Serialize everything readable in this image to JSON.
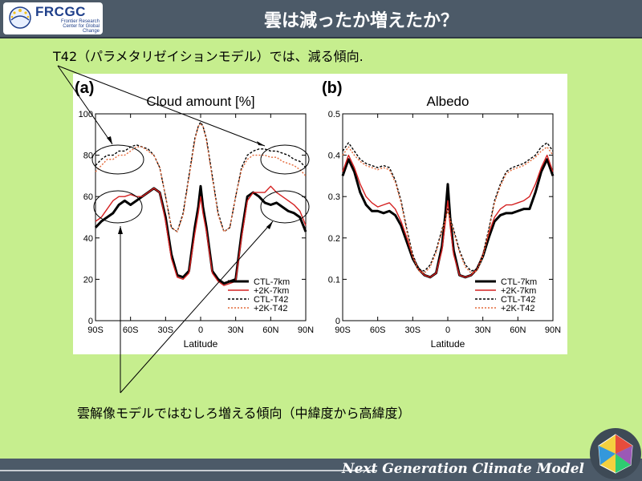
{
  "header": {
    "logo_text": "FRCGC",
    "logo_subtitle": "Frontier Research Center for Global Change",
    "title": "雲は減ったか増えたか？"
  },
  "notes": {
    "top": "T42（パラメタリゼイションモデル）では、減る傾向.",
    "bottom": "雲解像モデルではむしろ増える傾向（中緯度から高緯度）"
  },
  "footer": {
    "text": "Next Generation Climate Model"
  },
  "colors": {
    "background": "#c6ee8e",
    "bar": "#4c5a68",
    "ctl7": "#000000",
    "k7": "#d42020",
    "ctlT42": "#000000",
    "kT42": "#e46a3a"
  },
  "chart_data": [
    {
      "type": "line",
      "panel_label": "(a)",
      "title": "Cloud amount [%]",
      "xlabel": "Latitude",
      "ylabel": "",
      "xlim": [
        -90,
        90
      ],
      "ylim": [
        0,
        100
      ],
      "xticks": [
        -90,
        -60,
        -30,
        0,
        30,
        60,
        90
      ],
      "xticklabels": [
        "90S",
        "60S",
        "30S",
        "0",
        "30N",
        "60N",
        "90N"
      ],
      "yticks": [
        0,
        20,
        40,
        60,
        80,
        100
      ],
      "yticklabels": [
        "0",
        "20",
        "40",
        "60",
        "80",
        "100"
      ],
      "legend_position": "bottom-right",
      "x": [
        -90,
        -85,
        -80,
        -75,
        -70,
        -65,
        -60,
        -55,
        -50,
        -45,
        -40,
        -35,
        -30,
        -25,
        -20,
        -15,
        -10,
        -5,
        -2,
        0,
        2,
        5,
        10,
        15,
        20,
        25,
        30,
        35,
        40,
        45,
        50,
        55,
        60,
        65,
        70,
        75,
        80,
        85,
        90
      ],
      "series": [
        {
          "name": "CTL-7km",
          "style": "solid-thick",
          "color": "#000000",
          "values": [
            45,
            48,
            50,
            52,
            56,
            58,
            56,
            58,
            60,
            62,
            64,
            62,
            50,
            32,
            22,
            21,
            24,
            45,
            55,
            65,
            55,
            45,
            24,
            20,
            18,
            19,
            20,
            42,
            60,
            62,
            60,
            57,
            56,
            57,
            55,
            53,
            52,
            50,
            43
          ]
        },
        {
          "name": "+2K-7km",
          "style": "solid",
          "color": "#d42020",
          "values": [
            48,
            50,
            54,
            58,
            60,
            60,
            61,
            60,
            60,
            62,
            64,
            62,
            48,
            30,
            21,
            20,
            23,
            42,
            52,
            60,
            52,
            43,
            23,
            19,
            17,
            18,
            19,
            40,
            58,
            62,
            62,
            62,
            65,
            62,
            60,
            58,
            56,
            53,
            46
          ]
        },
        {
          "name": "CTL-T42",
          "style": "dashed",
          "color": "#000000",
          "values": [
            75,
            78,
            80,
            80,
            82,
            82,
            84,
            85,
            84,
            83,
            80,
            74,
            60,
            45,
            43,
            52,
            70,
            88,
            94,
            96,
            94,
            88,
            70,
            52,
            43,
            45,
            60,
            74,
            80,
            82,
            83,
            83,
            82,
            82,
            81,
            80,
            78,
            77,
            74
          ]
        },
        {
          "name": "+2K-T42",
          "style": "dotted",
          "color": "#e46a3a",
          "values": [
            72,
            75,
            78,
            78,
            80,
            80,
            82,
            84,
            84,
            82,
            80,
            74,
            60,
            45,
            43,
            51,
            69,
            87,
            94,
            95,
            94,
            87,
            69,
            51,
            43,
            45,
            60,
            73,
            78,
            80,
            80,
            80,
            79,
            79,
            77,
            76,
            75,
            73,
            70
          ]
        }
      ]
    },
    {
      "type": "line",
      "panel_label": "(b)",
      "title": "Albedo",
      "xlabel": "Latitude",
      "ylabel": "",
      "xlim": [
        -90,
        90
      ],
      "ylim": [
        0,
        0.5
      ],
      "xticks": [
        -90,
        -60,
        -30,
        0,
        30,
        60,
        90
      ],
      "xticklabels": [
        "90S",
        "60S",
        "30S",
        "0",
        "30N",
        "60N",
        "90N"
      ],
      "yticks": [
        0,
        0.1,
        0.2,
        0.3,
        0.4,
        0.5
      ],
      "yticklabels": [
        "0",
        "0.1",
        "0.2",
        "0.3",
        "0.4",
        "0.5"
      ],
      "legend_position": "bottom-right",
      "x": [
        -90,
        -85,
        -80,
        -75,
        -70,
        -65,
        -60,
        -55,
        -50,
        -45,
        -40,
        -35,
        -30,
        -25,
        -20,
        -15,
        -10,
        -5,
        -2,
        0,
        2,
        5,
        10,
        15,
        20,
        25,
        30,
        35,
        40,
        45,
        50,
        55,
        60,
        65,
        70,
        75,
        80,
        85,
        90
      ],
      "series": [
        {
          "name": "CTL-7km",
          "style": "solid-thick",
          "color": "#000000",
          "values": [
            0.35,
            0.39,
            0.36,
            0.31,
            0.28,
            0.265,
            0.265,
            0.26,
            0.265,
            0.255,
            0.23,
            0.19,
            0.15,
            0.125,
            0.11,
            0.105,
            0.115,
            0.18,
            0.26,
            0.33,
            0.25,
            0.17,
            0.11,
            0.105,
            0.11,
            0.125,
            0.155,
            0.2,
            0.24,
            0.255,
            0.26,
            0.26,
            0.265,
            0.27,
            0.27,
            0.31,
            0.36,
            0.39,
            0.35
          ]
        },
        {
          "name": "+2K-7km",
          "style": "solid",
          "color": "#d42020",
          "values": [
            0.36,
            0.4,
            0.37,
            0.33,
            0.3,
            0.285,
            0.275,
            0.28,
            0.285,
            0.27,
            0.24,
            0.2,
            0.155,
            0.125,
            0.11,
            0.105,
            0.115,
            0.17,
            0.24,
            0.29,
            0.23,
            0.16,
            0.11,
            0.105,
            0.11,
            0.125,
            0.16,
            0.21,
            0.25,
            0.27,
            0.28,
            0.28,
            0.285,
            0.29,
            0.3,
            0.33,
            0.37,
            0.4,
            0.36
          ]
        },
        {
          "name": "CTL-T42",
          "style": "dashed",
          "color": "#000000",
          "values": [
            0.41,
            0.43,
            0.41,
            0.39,
            0.38,
            0.375,
            0.37,
            0.375,
            0.37,
            0.34,
            0.29,
            0.22,
            0.16,
            0.125,
            0.12,
            0.135,
            0.17,
            0.22,
            0.25,
            0.27,
            0.25,
            0.22,
            0.17,
            0.135,
            0.12,
            0.125,
            0.16,
            0.22,
            0.29,
            0.33,
            0.36,
            0.37,
            0.375,
            0.38,
            0.39,
            0.4,
            0.42,
            0.43,
            0.41
          ]
        },
        {
          "name": "+2K-T42",
          "style": "dotted",
          "color": "#e46a3a",
          "values": [
            0.4,
            0.42,
            0.4,
            0.385,
            0.375,
            0.37,
            0.365,
            0.37,
            0.365,
            0.335,
            0.285,
            0.215,
            0.155,
            0.12,
            0.115,
            0.13,
            0.165,
            0.215,
            0.245,
            0.265,
            0.245,
            0.215,
            0.165,
            0.13,
            0.115,
            0.12,
            0.155,
            0.215,
            0.285,
            0.325,
            0.355,
            0.365,
            0.37,
            0.375,
            0.385,
            0.395,
            0.41,
            0.42,
            0.4
          ]
        }
      ]
    }
  ]
}
